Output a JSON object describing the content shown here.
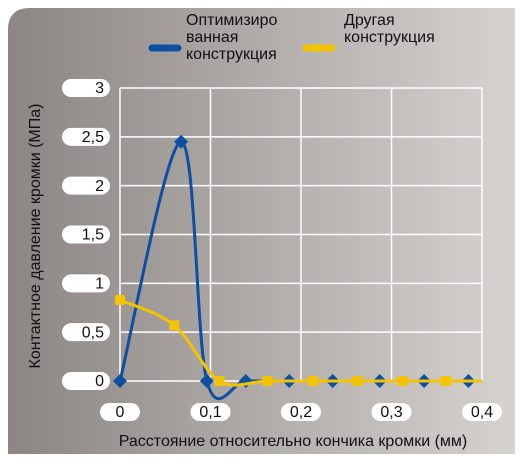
{
  "chart_data": {
    "type": "line",
    "xlabel": "Расстояние относительно кончика кромки (мм)",
    "ylabel": "Контактное давление кромки (МПа)",
    "xlim": [
      0,
      0.4
    ],
    "xticks": [
      0,
      {
        "value": 0.1,
        "label": "0,1"
      },
      {
        "value": 0.2,
        "label": "0,2"
      },
      {
        "value": 0.3,
        "label": "0,3"
      },
      {
        "value": 0.4,
        "label": "0,4"
      }
    ],
    "ylim": [
      0,
      3
    ],
    "yticks": [
      0,
      {
        "value": 0.5,
        "label": "0,5"
      },
      1,
      {
        "value": 1.5,
        "label": "1,5"
      },
      2,
      {
        "value": 2.5,
        "label": "2,5"
      },
      3
    ],
    "grid": true,
    "series": [
      {
        "name": "Оптимизиро ванная конструкция",
        "color": "#0d4fa0",
        "marker": "diamond",
        "x": [
          0,
          0.0675,
          0.096,
          0.139,
          0.187,
          0.235,
          0.287,
          0.336,
          0.385
        ],
        "values": [
          0,
          2.45,
          0,
          0,
          0,
          0,
          0,
          0,
          0
        ]
      },
      {
        "name": "Другая конструкция",
        "color": "#f5c400",
        "marker": "square",
        "x": [
          0,
          0.06,
          0.11,
          0.163,
          0.213,
          0.262,
          0.312,
          0.36
        ],
        "values": [
          0.83,
          0.57,
          0,
          0,
          0,
          0,
          0,
          0
        ]
      }
    ]
  }
}
